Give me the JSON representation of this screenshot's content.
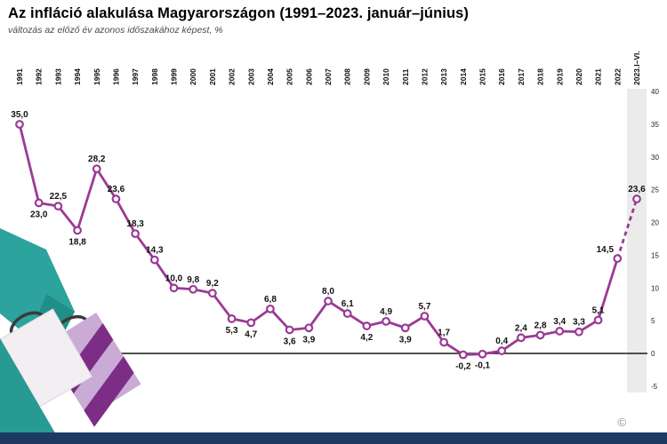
{
  "header": {
    "title": "Az infláció alakulása Magyarországon (1991–2023. január–június)",
    "subtitle": "változás az előző év azonos időszakához képest, %"
  },
  "chart_data": {
    "type": "line",
    "title": "Az infláció alakulása Magyarországon (1991–2023. január–június)",
    "subtitle": "változás az előző év azonos időszakához képest, %",
    "unit": "%",
    "categories": [
      "1991",
      "1992",
      "1993",
      "1994",
      "1995",
      "1996",
      "1997",
      "1998",
      "1999",
      "2000",
      "2001",
      "2002",
      "2003",
      "2004",
      "2005",
      "2006",
      "2007",
      "2008",
      "2009",
      "2010",
      "2011",
      "2012",
      "2013",
      "2014",
      "2015",
      "2016",
      "2017",
      "2018",
      "2019",
      "2020",
      "2021",
      "2022",
      "2023.I–VI."
    ],
    "values": [
      35.0,
      23.0,
      22.5,
      18.8,
      28.2,
      23.6,
      18.3,
      14.3,
      10.0,
      9.8,
      9.2,
      5.3,
      4.7,
      6.8,
      3.6,
      3.9,
      8.0,
      6.1,
      4.2,
      4.9,
      3.9,
      5.7,
      1.7,
      -0.2,
      -0.1,
      0.4,
      2.4,
      2.8,
      3.4,
      3.3,
      5.1,
      14.5,
      23.6
    ],
    "value_labels": [
      "35,0",
      "23,0",
      "22,5",
      "18,8",
      "28,2",
      "23,6",
      "18,3",
      "14,3",
      "10,0",
      "9,8",
      "9,2",
      "5,3",
      "4,7",
      "6,8",
      "3,6",
      "3,9",
      "8,0",
      "6,1",
      "4,2",
      "4,9",
      "3,9",
      "5,7",
      "1,7",
      "-0,2",
      "-0,1",
      "0,4",
      "2,4",
      "2,8",
      "3,4",
      "3,3",
      "5,1",
      "14,5",
      "23,6"
    ],
    "label_positions": [
      "above",
      "below",
      "above",
      "below",
      "above",
      "above",
      "above",
      "above",
      "above",
      "above",
      "above",
      "below",
      "below",
      "above",
      "below",
      "below",
      "above",
      "above",
      "below",
      "above",
      "below",
      "above",
      "above",
      "below",
      "below",
      "above",
      "above",
      "above",
      "above",
      "above",
      "above",
      "above-left",
      "above"
    ],
    "yticks": [
      40,
      35,
      30,
      25,
      20,
      15,
      10,
      5,
      0,
      -5
    ],
    "ylim": [
      -5,
      40
    ],
    "dashed_last_segment": true,
    "highlight_last_category": true,
    "line_color": "#9b3a96",
    "point_fill": "#ffffff",
    "label_color": "#111111",
    "axis_color": "#1a1a1a",
    "highlight_band_color": "#ebebeb",
    "legend": "none",
    "grid": "off"
  },
  "footer": {
    "bar_color": "#1d3a63"
  },
  "logo": {
    "mark": "©"
  }
}
